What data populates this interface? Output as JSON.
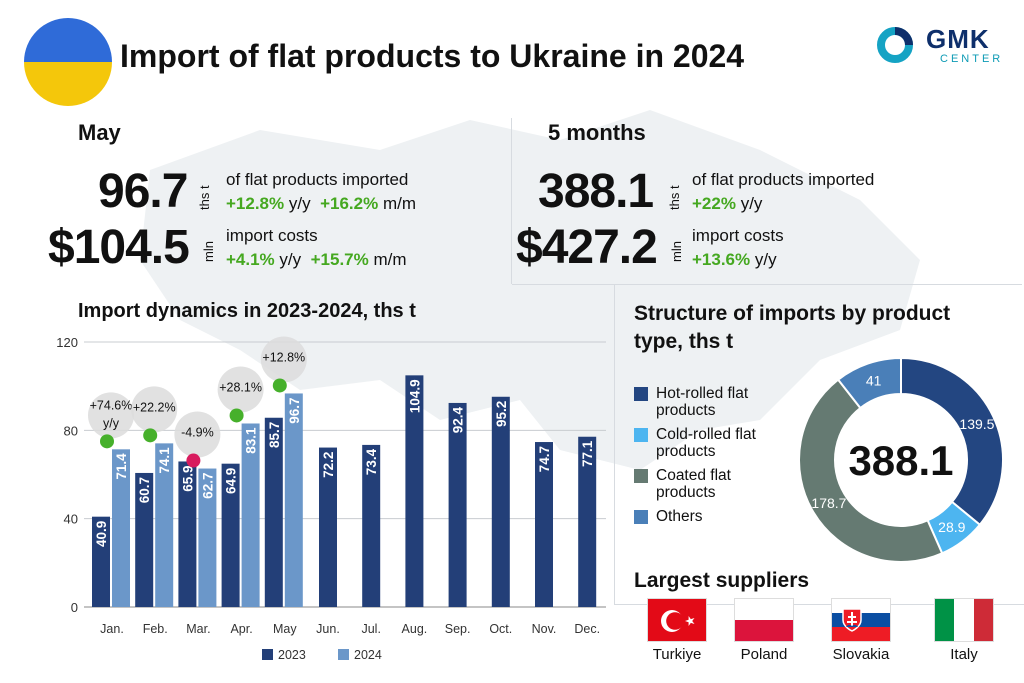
{
  "header": {
    "title": "Import of flat products to Ukraine in 2024",
    "logo_main": "GMK",
    "logo_sub": "CENTER"
  },
  "colors": {
    "y2023": "#233f78",
    "y2024": "#6b97c9",
    "hot_rolled": "#234681",
    "cold_rolled": "#4db5f0",
    "coated": "#657a72",
    "others": "#4a7fb8",
    "positive": "#46b02b",
    "negative": "#d81b5e",
    "flag_blue": "#2f6bd8",
    "flag_yellow": "#f4c70b"
  },
  "may": {
    "title": "May",
    "volume": "96.7",
    "volume_unit": "ths t",
    "volume_label": "of flat products imported",
    "volume_yy": "+12.8%",
    "volume_yy_suffix": "y/y",
    "volume_mm": "+16.2%",
    "volume_mm_suffix": "m/m",
    "cost": "$104.5",
    "cost_unit": "mln",
    "cost_label": "import costs",
    "cost_yy": "+4.1%",
    "cost_yy_suffix": "y/y",
    "cost_mm": "+15.7%",
    "cost_mm_suffix": "m/m"
  },
  "five_months": {
    "title": "5 months",
    "volume": "388.1",
    "volume_unit": "ths t",
    "volume_label": "of flat products imported",
    "volume_yy": "+22%",
    "volume_yy_suffix": "y/y",
    "cost": "$427.2",
    "cost_unit": "mln",
    "cost_label": "import costs",
    "cost_yy": "+13.6%",
    "cost_yy_suffix": "y/y"
  },
  "chart_data": [
    {
      "type": "bar",
      "title": "Import dynamics in 2023-2024, ths t",
      "categories": [
        "Jan.",
        "Feb.",
        "Mar.",
        "Apr.",
        "May",
        "Jun.",
        "Jul.",
        "Aug.",
        "Sep.",
        "Oct.",
        "Nov.",
        "Dec."
      ],
      "series": [
        {
          "name": "2023",
          "values": [
            40.9,
            60.7,
            65.9,
            64.9,
            85.7,
            72.2,
            73.4,
            104.9,
            92.4,
            95.2,
            74.7,
            77.1
          ]
        },
        {
          "name": "2024",
          "values": [
            71.4,
            74.1,
            62.7,
            83.1,
            96.7,
            null,
            null,
            null,
            null,
            null,
            null,
            null
          ]
        }
      ],
      "changes": [
        "+74.6% y/y",
        "+22.2%",
        "-4.9%",
        "+28.1%",
        "+12.8%"
      ],
      "change_sign": [
        1,
        1,
        -1,
        1,
        1
      ],
      "yticks": [
        0,
        40,
        80,
        120
      ],
      "ylim": [
        0,
        120
      ],
      "legend": "bottom"
    },
    {
      "type": "pie",
      "title": "Structure of imports by product type, ths t",
      "total": "388.1",
      "labels": [
        "Hot-rolled flat products",
        "Cold-rolled flat products",
        "Coated flat products",
        "Others"
      ],
      "values": [
        139.5,
        28.9,
        178.7,
        41
      ],
      "value_labels": [
        "139.5",
        "28.9",
        "178.7",
        "41"
      ]
    }
  ],
  "suppliers": {
    "title": "Largest suppliers",
    "items": [
      "Turkiye",
      "Poland",
      "Slovakia",
      "Italy"
    ]
  }
}
